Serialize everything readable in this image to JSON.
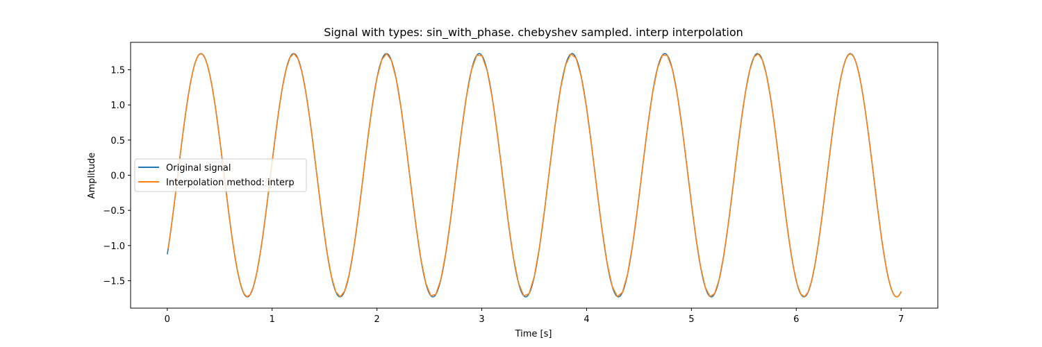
{
  "chart_data": {
    "type": "line",
    "title": "Signal with types: sin_with_phase. chebyshev sampled. interp interpolation",
    "xlabel": "Time [s]",
    "ylabel": "Amplitude",
    "xlim": [
      -0.35,
      7.35
    ],
    "ylim": [
      -1.89,
      1.89
    ],
    "xticks": [
      0,
      1,
      2,
      3,
      4,
      5,
      6,
      7
    ],
    "xtick_labels": [
      "0",
      "1",
      "2",
      "3",
      "4",
      "5",
      "6",
      "7"
    ],
    "yticks": [
      -1.5,
      -1.0,
      -0.5,
      0.0,
      0.5,
      1.0,
      1.5
    ],
    "ytick_labels": [
      "−1.5",
      "−1.0",
      "−0.5",
      "0.0",
      "0.5",
      "1.0",
      "1.5"
    ],
    "grid": false,
    "legend": {
      "placement": "center-left"
    },
    "signal": {
      "amplitude": 1.73,
      "frequency_hz": 1.13,
      "phase_rad": -0.708,
      "t_start": 0,
      "t_end": 7
    },
    "series": [
      {
        "name": "Original signal",
        "color": "#1f77b4"
      },
      {
        "name": "Interpolation method: interp",
        "color": "#ff7f0e"
      }
    ]
  }
}
